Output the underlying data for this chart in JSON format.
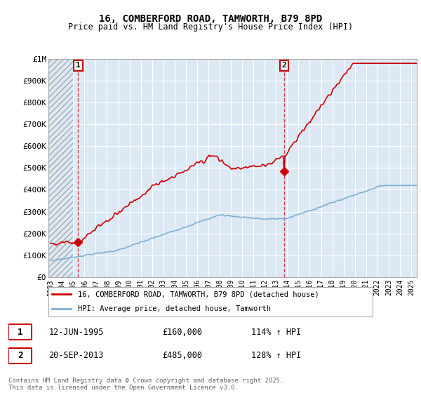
{
  "title": "16, COMBERFORD ROAD, TAMWORTH, B79 8PD",
  "subtitle": "Price paid vs. HM Land Registry's House Price Index (HPI)",
  "ylim": [
    0,
    1000000
  ],
  "yticks": [
    0,
    100000,
    200000,
    300000,
    400000,
    500000,
    600000,
    700000,
    800000,
    900000,
    1000000
  ],
  "ytick_labels": [
    "£0",
    "£100K",
    "£200K",
    "£300K",
    "£400K",
    "£500K",
    "£600K",
    "£700K",
    "£800K",
    "£900K",
    "£1M"
  ],
  "sale1_date_num": 1995.44,
  "sale1_price": 160000,
  "sale1_label": "1",
  "sale2_date_num": 2013.72,
  "sale2_price": 485000,
  "sale2_label": "2",
  "property_color": "#cc0000",
  "hpi_color": "#7eb0d5",
  "bg_color": "#dce9f5",
  "grid_color": "#ffffff",
  "legend_property": "16, COMBERFORD ROAD, TAMWORTH, B79 8PD (detached house)",
  "legend_hpi": "HPI: Average price, detached house, Tamworth",
  "annotation1_date": "12-JUN-1995",
  "annotation1_price": "£160,000",
  "annotation1_hpi": "114% ↑ HPI",
  "annotation2_date": "20-SEP-2013",
  "annotation2_price": "£485,000",
  "annotation2_hpi": "128% ↑ HPI",
  "footer": "Contains HM Land Registry data © Crown copyright and database right 2025.\nThis data is licensed under the Open Government Licence v3.0.",
  "xlim_start": 1992.8,
  "xlim_end": 2025.5,
  "xticks": [
    1993,
    1994,
    1995,
    1996,
    1997,
    1998,
    1999,
    2000,
    2001,
    2002,
    2003,
    2004,
    2005,
    2006,
    2007,
    2008,
    2009,
    2010,
    2011,
    2012,
    2013,
    2014,
    2015,
    2016,
    2017,
    2018,
    2019,
    2020,
    2021,
    2022,
    2023,
    2024,
    2025
  ]
}
